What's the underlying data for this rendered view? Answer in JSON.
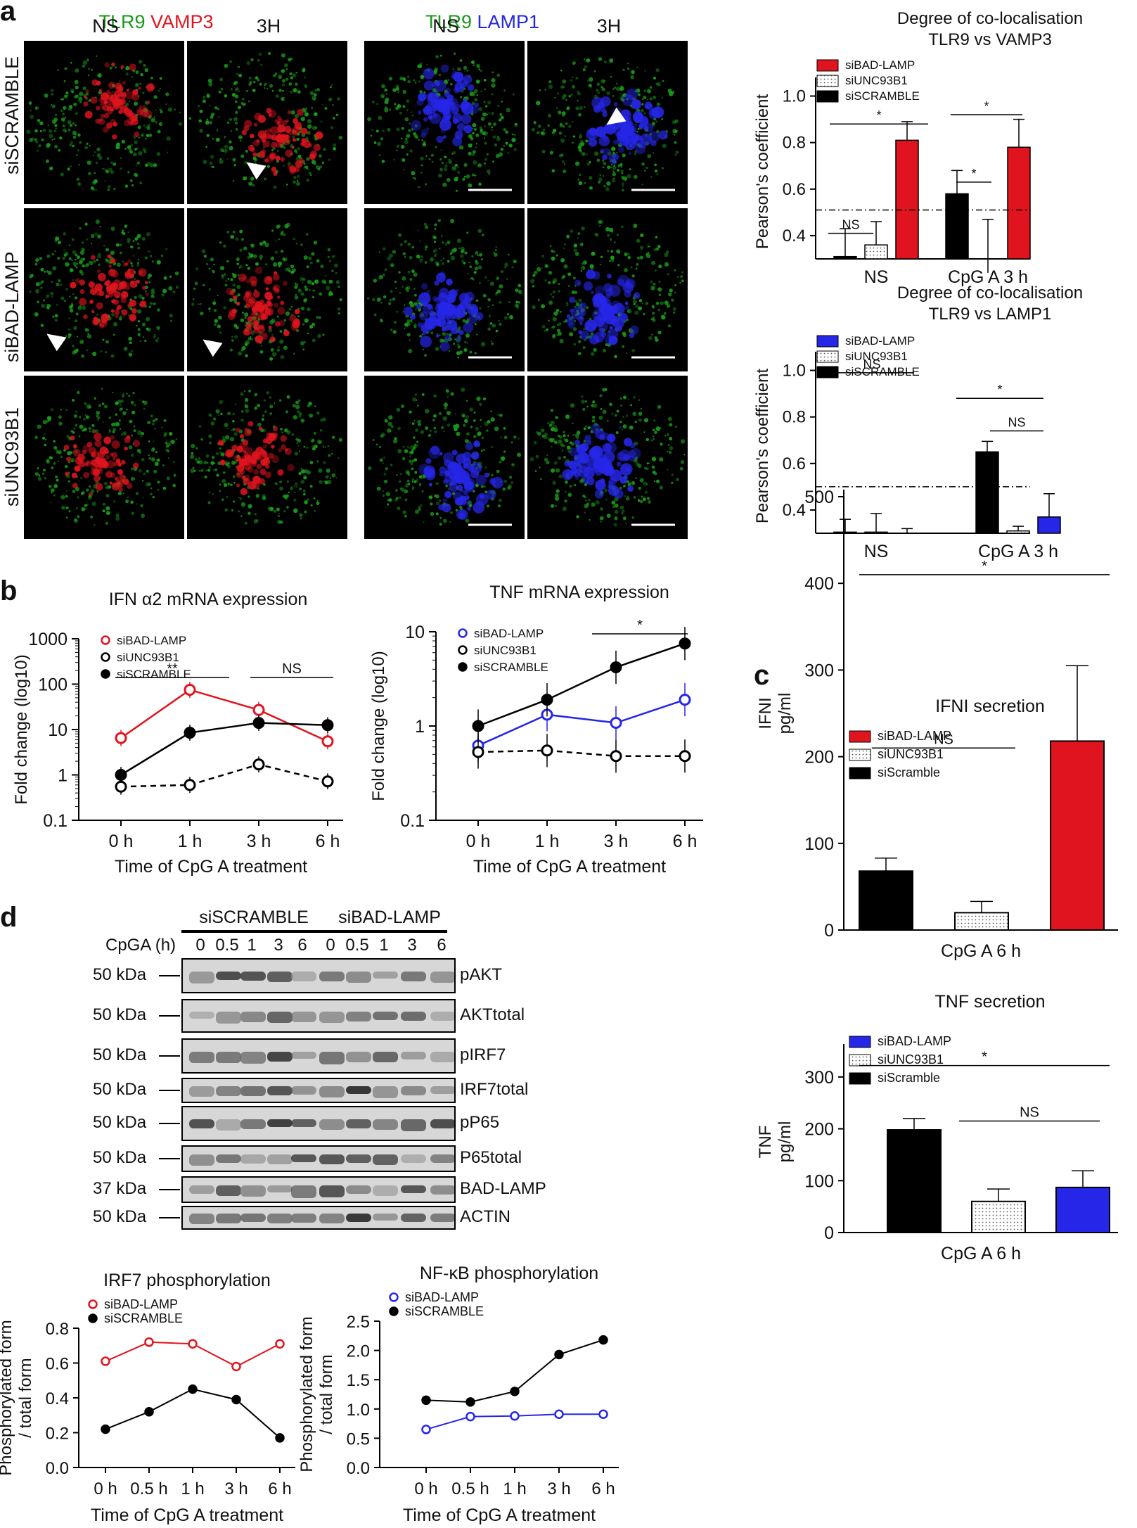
{
  "panel_a": {
    "letter": "a",
    "vamp3_header": {
      "tlr9": "TLR9",
      "marker": "VAMP3"
    },
    "lamp1_header": {
      "tlr9": "TLR9",
      "marker": "LAMP1"
    },
    "col_labels": [
      "NS",
      "3H",
      "NS",
      "3H"
    ],
    "row_labels": [
      "siSCRAMBLE",
      "siBAD-LAMP",
      "siUNC93B1"
    ],
    "colors": {
      "green": "#1a9a1a",
      "red": "#e0141e",
      "blue": "#2626e8"
    }
  },
  "panel_b": {
    "letter": "b"
  },
  "panel_c": {
    "letter": "c"
  },
  "panel_d": {
    "letter": "d",
    "group_labels": [
      "siSCRAMBLE",
      "siBAD-LAMP"
    ],
    "cpga_label": "CpGA (h)",
    "timepoints": [
      "0",
      "0.5",
      "1",
      "3",
      "6",
      "0",
      "0.5",
      "1",
      "3",
      "6"
    ],
    "blots": [
      {
        "kda": "50 kDa",
        "name": "pAKT"
      },
      {
        "kda": "50 kDa",
        "name": "AKTtotal"
      },
      {
        "kda": "50 kDa",
        "name": "pIRF7"
      },
      {
        "kda": "50 kDa",
        "name": "IRF7total"
      },
      {
        "kda": "50 kDa",
        "name": "pP65"
      },
      {
        "kda": "50 kDa",
        "name": "P65total"
      },
      {
        "kda": "37 kDa",
        "name": "BAD-LAMP"
      },
      {
        "kda": "50 kDa",
        "name": "ACTIN"
      }
    ]
  },
  "chart_data": [
    {
      "id": "coloc_vamp3",
      "type": "bar",
      "title": "Degree of co-localisation\nTLR9 vs VAMP3",
      "ylabel": "Pearson's coefficient",
      "ylim": [
        0.3,
        1.05
      ],
      "yticks": [
        "0.4",
        "0.6",
        "0.8",
        "1.0"
      ],
      "categories": [
        "NS",
        "CpG A 3 h"
      ],
      "legend": [
        "siBAD-LAMP",
        "siUNC93B1",
        "siSCRAMBLE"
      ],
      "series": [
        {
          "name": "siSCRAMBLE",
          "values": [
            0.31,
            0.58
          ],
          "err": [
            0.12,
            0.1
          ],
          "color": "#000000"
        },
        {
          "name": "siUNC93B1",
          "values": [
            0.36,
            0.24
          ],
          "err": [
            0.1,
            0.23
          ],
          "color": "dotted"
        },
        {
          "name": "siBAD-LAMP",
          "values": [
            0.81,
            0.78
          ],
          "err": [
            0.08,
            0.12
          ],
          "color": "#e0141e"
        }
      ],
      "threshold": 0.51,
      "annotations": [
        {
          "text": "NS",
          "groups": "NS: siSCRAMBLE–siUNC93B1"
        },
        {
          "text": "*",
          "groups": "NS: siSCRAMBLE–siBAD-LAMP"
        },
        {
          "text": "*",
          "groups": "CpG: siSCRAMBLE–siBAD-LAMP"
        },
        {
          "text": "*",
          "groups": "CpG: siSCRAMBLE–siUNC93B1"
        }
      ]
    },
    {
      "id": "coloc_lamp1",
      "type": "bar",
      "title": "Degree of co-localisation\nTLR9 vs LAMP1",
      "ylabel": "Pearson's coefficient",
      "ylim": [
        0.3,
        1.05
      ],
      "yticks": [
        "0.4",
        "0.6",
        "0.8",
        "1.0"
      ],
      "categories": [
        "NS",
        "CpG A 3 h"
      ],
      "legend": [
        "siBAD-LAMP",
        "siUNC93B1",
        "siSCRAMBLE"
      ],
      "series": [
        {
          "name": "siSCRAMBLE",
          "values": [
            0.305,
            0.65
          ],
          "err": [
            0.055,
            0.045
          ],
          "color": "#000000"
        },
        {
          "name": "siUNC93B1",
          "values": [
            0.305,
            0.31
          ],
          "err": [
            0.08,
            0.02
          ],
          "color": "dotted"
        },
        {
          "name": "siBAD-LAMP",
          "values": [
            0.3,
            0.37
          ],
          "err": [
            0.02,
            0.1
          ],
          "color": "#2626e8"
        }
      ],
      "threshold": 0.5,
      "annotations": [
        {
          "text": "NS",
          "groups": "NS group"
        },
        {
          "text": "*",
          "groups": "CpG: siSCRAMBLE–siBAD-LAMP"
        },
        {
          "text": "NS",
          "groups": "CpG: siUNC93B1–siBAD-LAMP"
        }
      ]
    },
    {
      "id": "ifn_mrna",
      "type": "line",
      "title": "IFN α2 mRNA expression",
      "xlabel": "Time of CpG A treatment",
      "ylabel": "Fold change (log10)",
      "yscale": "log",
      "ylim": [
        0.1,
        1000
      ],
      "yticks": [
        "0.1",
        "1",
        "10",
        "100",
        "1000"
      ],
      "categories": [
        "0 h",
        "1 h",
        "3 h",
        "6 h"
      ],
      "series": [
        {
          "name": "siBAD-LAMP",
          "values": [
            6.5,
            75,
            27,
            5.5
          ],
          "color": "#e0141e",
          "marker": "open"
        },
        {
          "name": "siUNC93B1",
          "values": [
            0.55,
            0.6,
            1.7,
            0.72
          ],
          "color": "#000000",
          "marker": "open",
          "dash": true
        },
        {
          "name": "siSCRAMBLE",
          "values": [
            1.0,
            8.5,
            14,
            12.5
          ],
          "color": "#000000",
          "marker": "filled"
        }
      ],
      "annotations": [
        {
          "text": "**"
        },
        {
          "text": "NS"
        }
      ]
    },
    {
      "id": "tnf_mrna",
      "type": "line",
      "title": "TNF mRNA expression",
      "xlabel": "Time of CpG A treatment",
      "ylabel": "Fold change (log10)",
      "yscale": "log",
      "ylim": [
        0.1,
        10
      ],
      "yticks": [
        "0.1",
        "1",
        "10"
      ],
      "categories": [
        "0 h",
        "1 h",
        "3 h",
        "6 h"
      ],
      "series": [
        {
          "name": "siBAD-LAMP",
          "values": [
            0.62,
            1.32,
            1.08,
            1.9
          ],
          "color": "#2626e8",
          "marker": "open"
        },
        {
          "name": "siUNC93B1",
          "values": [
            0.53,
            0.55,
            0.48,
            0.48
          ],
          "color": "#000000",
          "marker": "open",
          "dash": true
        },
        {
          "name": "siSCRAMBLE",
          "values": [
            1.0,
            1.9,
            4.2,
            7.5
          ],
          "color": "#000000",
          "marker": "filled"
        }
      ],
      "annotations": [
        {
          "text": "*"
        }
      ]
    },
    {
      "id": "ifni_secretion",
      "type": "bar",
      "title": "IFNI secretion",
      "ylabel": "IFNI\npg/ml",
      "ylim": [
        0,
        500
      ],
      "yticks": [
        "0",
        "100",
        "200",
        "300",
        "400",
        "500"
      ],
      "categories": [
        "CpG A 6 h"
      ],
      "legend": [
        "siBAD-LAMP",
        "siUNC93B1",
        "siScramble"
      ],
      "series": [
        {
          "name": "siScramble",
          "values": [
            68
          ],
          "err": [
            15
          ],
          "color": "#000000"
        },
        {
          "name": "siUNC93B1",
          "values": [
            20
          ],
          "err": [
            13
          ],
          "color": "dotted"
        },
        {
          "name": "siBAD-LAMP",
          "values": [
            218
          ],
          "err": [
            87
          ],
          "color": "#e0141e"
        }
      ],
      "annotations": [
        {
          "text": "*"
        },
        {
          "text": "NS"
        }
      ]
    },
    {
      "id": "tnf_secretion",
      "type": "bar",
      "title": "TNF secretion",
      "ylabel": "TNF\npg/ml",
      "ylim": [
        0,
        350
      ],
      "yticks": [
        "0",
        "100",
        "200",
        "300"
      ],
      "categories": [
        "CpG A 6 h"
      ],
      "legend": [
        "siBAD-LAMP",
        "siUNC93B1",
        "siScramble"
      ],
      "series": [
        {
          "name": "siScramble",
          "values": [
            198
          ],
          "err": [
            22
          ],
          "color": "#000000"
        },
        {
          "name": "siUNC93B1",
          "values": [
            60
          ],
          "err": [
            24
          ],
          "color": "dotted"
        },
        {
          "name": "siBAD-LAMP",
          "values": [
            87
          ],
          "err": [
            32
          ],
          "color": "#2626e8"
        }
      ],
      "annotations": [
        {
          "text": "*"
        },
        {
          "text": "NS"
        }
      ]
    },
    {
      "id": "irf7_phos",
      "type": "line",
      "title": "IRF7 phosphorylation",
      "xlabel": "Time of CpG A treatment",
      "ylabel": "Phosphorylated form\n/ total form",
      "ylim": [
        0,
        0.8
      ],
      "yticks": [
        "0.0",
        "0.2",
        "0.4",
        "0.6",
        "0.8"
      ],
      "categories": [
        "0 h",
        "0.5 h",
        "1 h",
        "3 h",
        "6 h"
      ],
      "series": [
        {
          "name": "siBAD-LAMP",
          "values": [
            0.61,
            0.72,
            0.71,
            0.58,
            0.71
          ],
          "color": "#e0141e",
          "marker": "open"
        },
        {
          "name": "siSCRAMBLE",
          "values": [
            0.22,
            0.32,
            0.45,
            0.39,
            0.17
          ],
          "color": "#000000",
          "marker": "filled"
        }
      ]
    },
    {
      "id": "nfkb_phos",
      "type": "line",
      "title": "NF-κB phosphorylation",
      "xlabel": "Time of CpG A treatment",
      "ylabel": "Phosphorylated form\n/ total form",
      "ylim": [
        0,
        2.5
      ],
      "yticks": [
        "0.0",
        "0.5",
        "1.0",
        "1.5",
        "2.0",
        "2.5"
      ],
      "categories": [
        "0 h",
        "0.5 h",
        "1 h",
        "3 h",
        "6 h"
      ],
      "series": [
        {
          "name": "siBAD-LAMP",
          "values": [
            0.65,
            0.87,
            0.88,
            0.91,
            0.91
          ],
          "color": "#2626e8",
          "marker": "open"
        },
        {
          "name": "siSCRAMBLE",
          "values": [
            1.15,
            1.12,
            1.3,
            1.93,
            2.18
          ],
          "color": "#000000",
          "marker": "filled"
        }
      ]
    }
  ]
}
